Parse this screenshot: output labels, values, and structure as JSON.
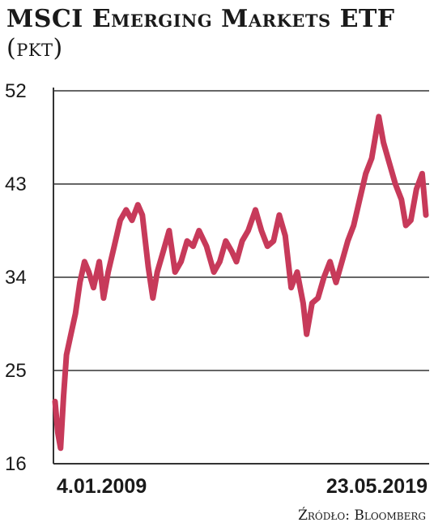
{
  "chart_data": {
    "type": "line",
    "title": "MSCI Emerging Markets ETF",
    "subtitle": "(pkt)",
    "source": "Źródło: Bloomberg",
    "x_start_label": "4.01.2009",
    "x_end_label": "23.05.2019",
    "ylim": [
      16,
      52
    ],
    "yticks": [
      "52",
      "43",
      "34",
      "25",
      "16"
    ],
    "grid": true,
    "series": [
      {
        "color": "#c73a5a",
        "points": [
          [
            "2009-01-04",
            22.0
          ],
          [
            "2009-02-01",
            19.0
          ],
          [
            "2009-03-01",
            17.5
          ],
          [
            "2009-04-01",
            22.5
          ],
          [
            "2009-05-01",
            26.5
          ],
          [
            "2009-06-15",
            28.5
          ],
          [
            "2009-08-01",
            30.5
          ],
          [
            "2009-09-15",
            33.5
          ],
          [
            "2009-11-01",
            35.5
          ],
          [
            "2009-12-15",
            34.5
          ],
          [
            "2010-02-01",
            33.0
          ],
          [
            "2010-04-01",
            35.5
          ],
          [
            "2010-05-15",
            32.0
          ],
          [
            "2010-07-01",
            34.5
          ],
          [
            "2010-09-01",
            37.0
          ],
          [
            "2010-11-01",
            39.5
          ],
          [
            "2011-01-01",
            40.5
          ],
          [
            "2011-03-01",
            39.5
          ],
          [
            "2011-05-01",
            41.0
          ],
          [
            "2011-06-15",
            40.0
          ],
          [
            "2011-08-15",
            35.0
          ],
          [
            "2011-10-01",
            32.0
          ],
          [
            "2011-11-15",
            34.5
          ],
          [
            "2012-01-15",
            36.5
          ],
          [
            "2012-03-15",
            38.5
          ],
          [
            "2012-05-15",
            34.5
          ],
          [
            "2012-07-15",
            35.5
          ],
          [
            "2012-09-15",
            37.5
          ],
          [
            "2012-11-15",
            37.0
          ],
          [
            "2013-01-15",
            38.5
          ],
          [
            "2013-04-01",
            37.0
          ],
          [
            "2013-06-15",
            34.5
          ],
          [
            "2013-08-15",
            35.5
          ],
          [
            "2013-10-15",
            37.5
          ],
          [
            "2013-12-15",
            36.5
          ],
          [
            "2014-02-01",
            35.5
          ],
          [
            "2014-04-01",
            37.5
          ],
          [
            "2014-06-01",
            38.5
          ],
          [
            "2014-08-15",
            40.5
          ],
          [
            "2014-10-15",
            38.5
          ],
          [
            "2014-12-15",
            37.0
          ],
          [
            "2015-02-15",
            37.5
          ],
          [
            "2015-04-15",
            40.0
          ],
          [
            "2015-06-15",
            38.0
          ],
          [
            "2015-08-15",
            33.0
          ],
          [
            "2015-10-15",
            34.5
          ],
          [
            "2015-12-15",
            31.5
          ],
          [
            "2016-01-20",
            28.5
          ],
          [
            "2016-03-15",
            31.5
          ],
          [
            "2016-05-15",
            32.0
          ],
          [
            "2016-07-15",
            34.0
          ],
          [
            "2016-09-15",
            35.5
          ],
          [
            "2016-11-15",
            33.5
          ],
          [
            "2017-01-15",
            35.5
          ],
          [
            "2017-03-15",
            37.5
          ],
          [
            "2017-05-15",
            39.0
          ],
          [
            "2017-07-15",
            41.5
          ],
          [
            "2017-09-15",
            44.0
          ],
          [
            "2017-11-15",
            45.5
          ],
          [
            "2018-01-26",
            49.5
          ],
          [
            "2018-03-15",
            47.0
          ],
          [
            "2018-05-15",
            45.0
          ],
          [
            "2018-07-15",
            43.0
          ],
          [
            "2018-09-15",
            41.5
          ],
          [
            "2018-10-30",
            39.0
          ],
          [
            "2018-12-20",
            39.5
          ],
          [
            "2019-02-15",
            42.5
          ],
          [
            "2019-04-15",
            44.0
          ],
          [
            "2019-05-23",
            40.0
          ]
        ]
      }
    ]
  }
}
